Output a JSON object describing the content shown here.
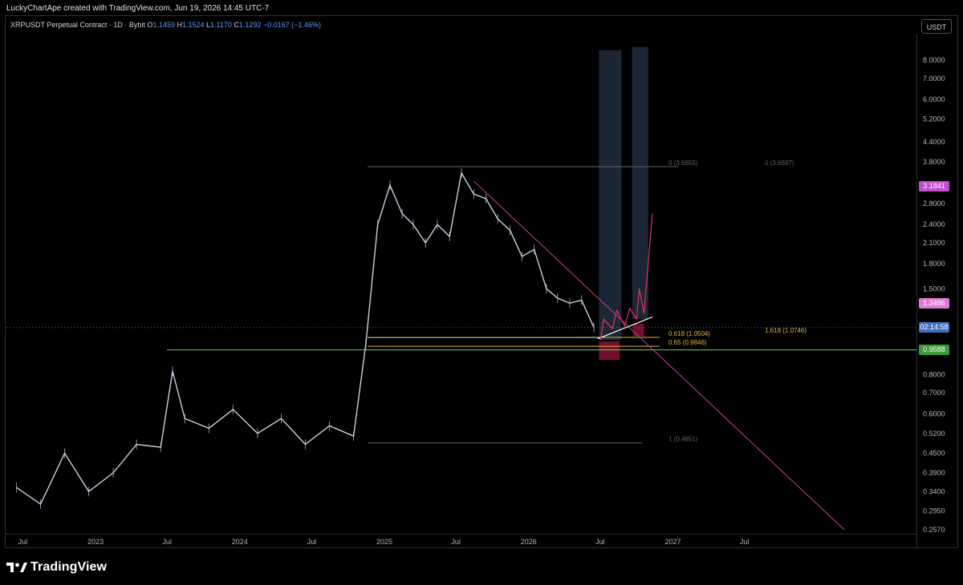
{
  "attribution": "LuckyChartApe created with TradingView.com, Jun 19, 2026 14:45 UTC-7",
  "symbol": {
    "name": "XRPUSDT Perpetual Contract · 1D · Bybit",
    "open_label": "O",
    "open": "1.1459",
    "high_label": "H",
    "high": "1.1524",
    "low_label": "L",
    "low": "1.1170",
    "close_label": "C",
    "close": "1.1292",
    "change": "−0.0167 (−1.46%)"
  },
  "currency": "USDT",
  "brand": {
    "name": "TradingView",
    "logo_icon": "tradingview-logo-icon"
  },
  "badges": {
    "level_top": "3.1841",
    "level_mid": "1.3486",
    "countdown": "02:14:58",
    "level_green": "0.9588"
  },
  "colors": {
    "candles": "#c9cfe0",
    "trendline": "#c2419a",
    "fib_gray": "#5d606b",
    "fib_orange": "#e0b341",
    "support_green": "#7cc46a",
    "projection_pink": "#e0326e",
    "zone_blue": "#1e2b3a",
    "zone_red": "#7c1230",
    "badge_purple": "#c24fcf",
    "badge_pink": "#e07ad6",
    "badge_blue": "#3f6fc1",
    "badge_green": "#3c9a3a"
  },
  "chart_data": {
    "type": "line",
    "title": "XRPUSDT Perpetual Contract · 1D · Bybit",
    "y_scale": "log",
    "ylim": [
      0.257,
      10.5
    ],
    "price_ticks": [
      "8.0000",
      "7.0000",
      "6.0000",
      "5.2000",
      "4.4000",
      "3.8000",
      "2.8000",
      "2.4000",
      "2.1000",
      "1.8000",
      "1.5000",
      "0.8000",
      "0.7000",
      "0.6000",
      "0.5200",
      "0.4500",
      "0.3900",
      "0.3400",
      "0.2950",
      "0.2570"
    ],
    "time_ticks": [
      "Jul",
      "2023",
      "Jul",
      "2024",
      "Jul",
      "2025",
      "Jul",
      "2026",
      "Jul",
      "2027",
      "Jul"
    ],
    "x": [
      "2022-06",
      "2022-08",
      "2022-10",
      "2022-12",
      "2023-02",
      "2023-04",
      "2023-06",
      "2023-07",
      "2023-08",
      "2023-10",
      "2023-12",
      "2024-02",
      "2024-04",
      "2024-06",
      "2024-08",
      "2024-10",
      "2024-11",
      "2024-12",
      "2025-01",
      "2025-02",
      "2025-03",
      "2025-04",
      "2025-05",
      "2025-06",
      "2025-07",
      "2025-08",
      "2025-09",
      "2025-10",
      "2025-11",
      "2025-12",
      "2026-01",
      "2026-02",
      "2026-03",
      "2026-04",
      "2026-05",
      "2026-06"
    ],
    "series": [
      {
        "values": [
          0.35,
          0.31,
          0.45,
          0.34,
          0.39,
          0.48,
          0.47,
          0.82,
          0.58,
          0.54,
          0.62,
          0.52,
          0.58,
          0.48,
          0.55,
          0.51,
          1.0,
          2.4,
          3.2,
          2.6,
          2.4,
          2.1,
          2.4,
          2.2,
          3.5,
          3.0,
          2.9,
          2.5,
          2.3,
          1.9,
          2.0,
          1.5,
          1.4,
          1.35,
          1.38,
          1.13
        ]
      }
    ],
    "fib_levels": [
      {
        "label": "0 (3.6655)",
        "value": 3.6655
      },
      {
        "label": "0 (3.6697)",
        "value": 3.6697
      },
      {
        "label": "0.618 (1.0504)",
        "value": 1.0504
      },
      {
        "label": "1.618 (1.0746)",
        "value": 1.0746
      },
      {
        "label": "0.65 (0.9846)",
        "value": 0.9846
      },
      {
        "label": "1 (0.4851)",
        "value": 0.4851
      }
    ],
    "horizontal_levels": [
      {
        "value": 0.9588
      }
    ],
    "projection": {
      "x": [
        "2026-07",
        "2026-07",
        "2026-08",
        "2026-08",
        "2026-09",
        "2026-09",
        "2026-10",
        "2026-10",
        "2026-10",
        "2026-11"
      ],
      "values": [
        1.03,
        1.2,
        1.12,
        1.28,
        1.14,
        1.3,
        1.2,
        1.5,
        1.25,
        2.6
      ]
    }
  }
}
